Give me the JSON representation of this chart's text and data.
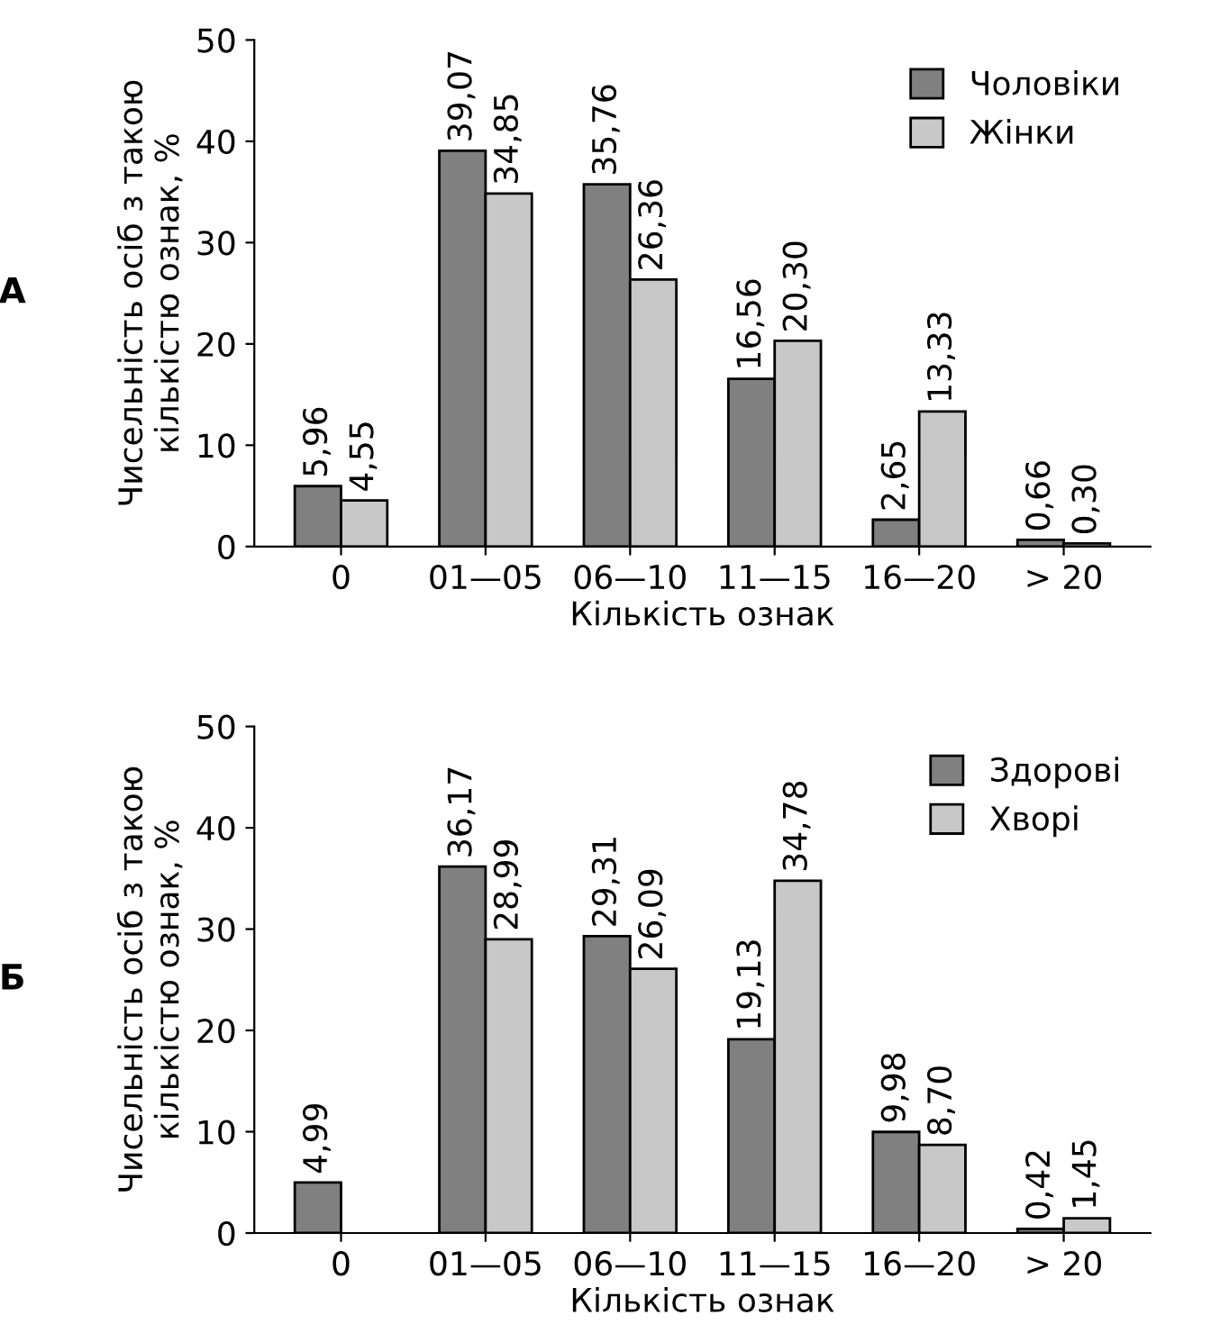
{
  "chart_data": [
    {
      "type": "bar",
      "categories": [
        "0",
        "01—05",
        "06—10",
        "11—15",
        "16—20",
        "> 20"
      ],
      "xlabel": "Кількість ознак",
      "ylabel": "Чисельність осіб з такою\nкількістю ознак, %",
      "ylim": [
        0,
        50
      ],
      "yticks": [
        0,
        10,
        20,
        30,
        40,
        50
      ],
      "legend": "top right",
      "grid": false,
      "annotations": [
        "А"
      ],
      "series": [
        {
          "name": "Чоловіки",
          "color": "#808080",
          "values": [
            5.96,
            39.07,
            35.76,
            16.56,
            2.65,
            0.66
          ],
          "value_labels": [
            "5,96",
            "39,07",
            "35,76",
            "16,56",
            "2,65",
            "0,66"
          ]
        },
        {
          "name": "Жінки",
          "color": "#c8c8c8",
          "values": [
            4.55,
            34.85,
            26.36,
            20.3,
            13.33,
            0.3
          ],
          "value_labels": [
            "4,55",
            "34,85",
            "26,36",
            "20,30",
            "13,33",
            "0,30"
          ]
        }
      ]
    },
    {
      "type": "bar",
      "categories": [
        "0",
        "01—05",
        "06—10",
        "11—15",
        "16—20",
        "> 20"
      ],
      "xlabel": "Кількість ознак",
      "ylabel": "Чисельність осіб з такою\nкількістю ознак, %",
      "ylim": [
        0,
        50
      ],
      "yticks": [
        0,
        10,
        20,
        30,
        40,
        50
      ],
      "legend": "top right",
      "grid": false,
      "annotations": [
        "Б"
      ],
      "series": [
        {
          "name": "Здорові",
          "color": "#808080",
          "values": [
            4.99,
            36.17,
            29.31,
            19.13,
            9.98,
            0.42
          ],
          "value_labels": [
            "4,99",
            "36,17",
            "29,31",
            "19,13",
            "9,98",
            "0,42"
          ]
        },
        {
          "name": "Хворі",
          "color": "#c8c8c8",
          "values": [
            null,
            28.99,
            26.09,
            34.78,
            8.7,
            1.45
          ],
          "value_labels": [
            null,
            "28,99",
            "26,09",
            "34,78",
            "8,70",
            "1,45"
          ]
        }
      ]
    }
  ]
}
